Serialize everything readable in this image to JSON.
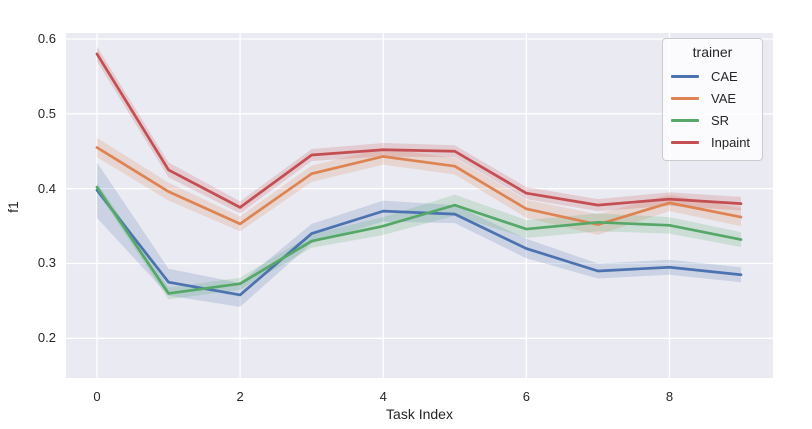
{
  "chart_data": {
    "type": "line",
    "title": "",
    "xlabel": "Task Index",
    "ylabel": "f1",
    "x": [
      0,
      1,
      2,
      3,
      4,
      5,
      6,
      7,
      8,
      9
    ],
    "xticks": [
      0,
      2,
      4,
      6,
      8
    ],
    "xtick_labels": [
      "0",
      "2",
      "4",
      "6",
      "8"
    ],
    "yticks": [
      0.2,
      0.3,
      0.4,
      0.5,
      0.6
    ],
    "ytick_labels": [
      "0.2",
      "0.3",
      "0.4",
      "0.5",
      "0.6"
    ],
    "xlim": [
      -0.433,
      9.447
    ],
    "ylim": [
      0.147,
      0.608
    ],
    "grid": true,
    "plot_bg_color": "#eaeaf2",
    "grid_color": "#ffffff",
    "text_color": "#262626",
    "band_alpha": 0.2,
    "legend": {
      "title": "trainer",
      "position": "upper right"
    },
    "series": [
      {
        "name": "CAE",
        "color": "#4c72b0",
        "values": [
          0.398,
          0.275,
          0.258,
          0.34,
          0.37,
          0.366,
          0.32,
          0.29,
          0.295,
          0.285
        ],
        "band_halfwidth": [
          0.037,
          0.018,
          0.016,
          0.013,
          0.014,
          0.012,
          0.013,
          0.01,
          0.01,
          0.01
        ]
      },
      {
        "name": "VAE",
        "color": "#dd8452",
        "values": [
          0.455,
          0.396,
          0.353,
          0.42,
          0.443,
          0.43,
          0.373,
          0.352,
          0.381,
          0.362
        ],
        "band_halfwidth": [
          0.013,
          0.012,
          0.01,
          0.011,
          0.011,
          0.011,
          0.012,
          0.014,
          0.011,
          0.012
        ]
      },
      {
        "name": "SR",
        "color": "#55a868",
        "values": [
          0.402,
          0.26,
          0.273,
          0.33,
          0.35,
          0.378,
          0.346,
          0.355,
          0.351,
          0.332
        ],
        "band_halfwidth": [
          0.006,
          0.008,
          0.008,
          0.009,
          0.012,
          0.014,
          0.012,
          0.012,
          0.011,
          0.01
        ]
      },
      {
        "name": "Inpaint",
        "color": "#c44e52",
        "values": [
          0.58,
          0.425,
          0.375,
          0.445,
          0.452,
          0.45,
          0.394,
          0.378,
          0.386,
          0.38
        ],
        "band_halfwidth": [
          0.01,
          0.01,
          0.008,
          0.008,
          0.009,
          0.008,
          0.008,
          0.008,
          0.009,
          0.009
        ]
      }
    ]
  }
}
